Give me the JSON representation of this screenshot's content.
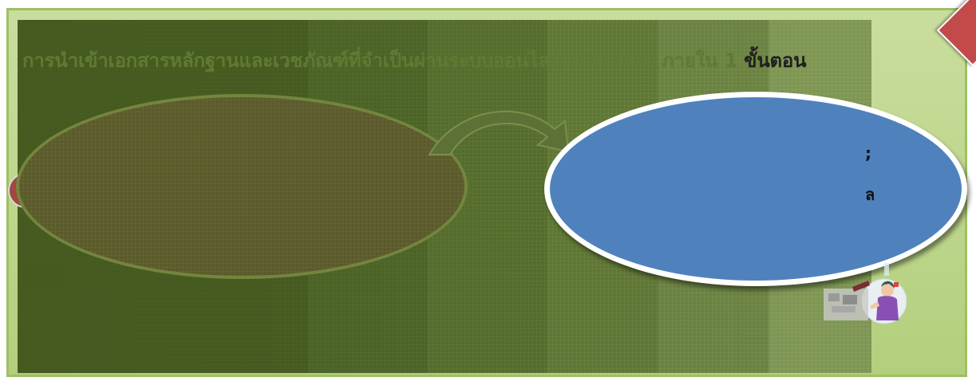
{
  "slide": {
    "title_main": "การนำเข้าเอกสารหลักฐานและเวชภัณฑ์ที่จำเป็นผ่านระบบออนไลน์ (Online) ภายใน 1",
    "title_tail": "ขั้นตอน",
    "blue_line_1": ";",
    "blue_line_2": "ล"
  },
  "colors": {
    "frame": "#bcd58a",
    "panel": "#455a1f",
    "blue_ellipse": "#4f81bd",
    "accent_red": "#c34a4a"
  },
  "icons": {
    "arrow": "curved-arrow-icon",
    "person": "person-illustration-icon"
  }
}
